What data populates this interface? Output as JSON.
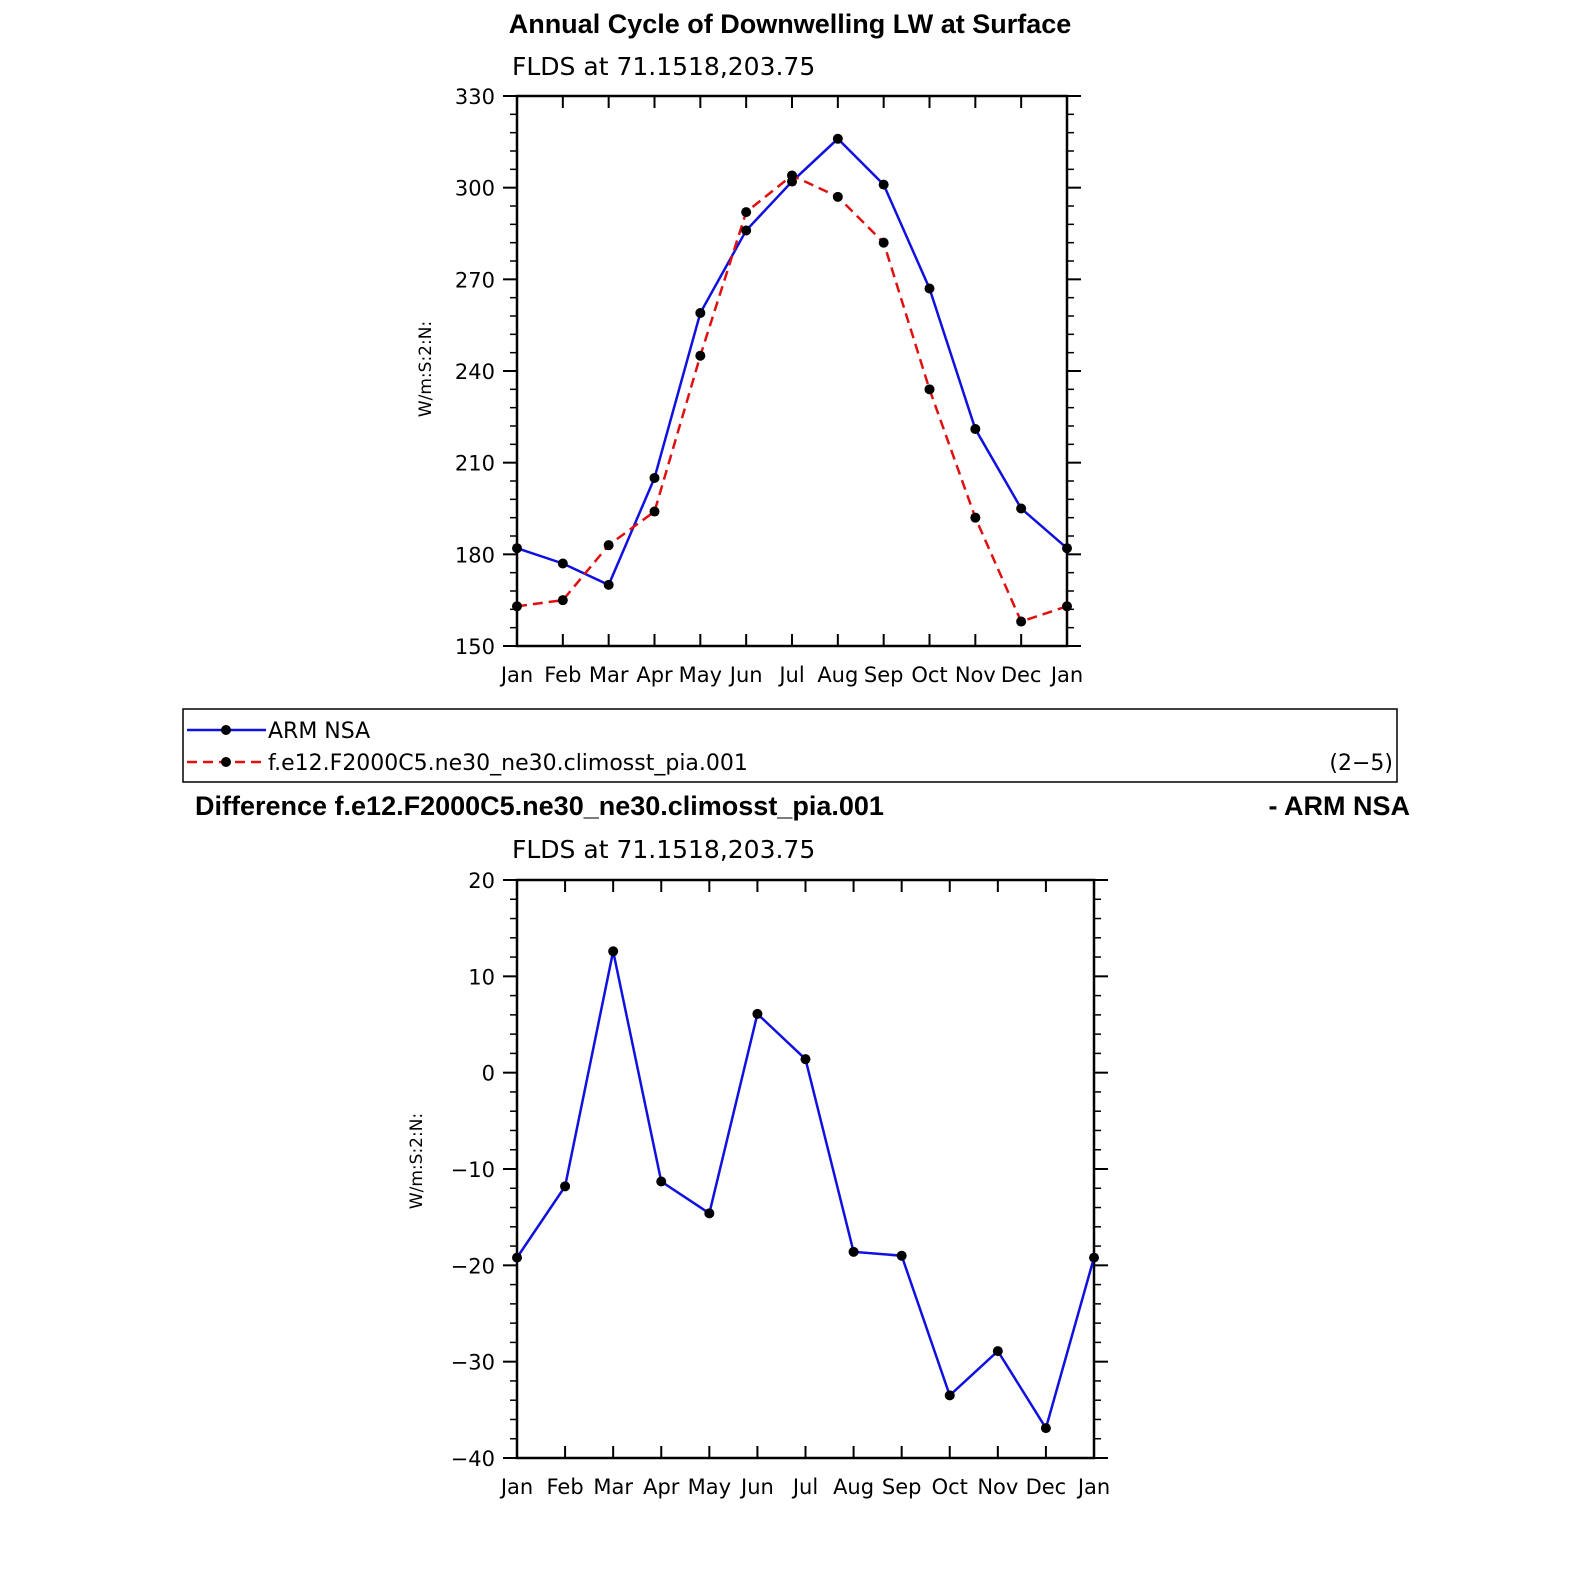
{
  "top_chart": {
    "title": "Annual Cycle of Downwelling LW at Surface",
    "subtitle": "FLDS at 71.1518,203.75",
    "ylabel": "W/m:S:2:N:"
  },
  "legend": {
    "items": [
      {
        "label": "ARM NSA",
        "color": "#1010e0",
        "dash": "solid"
      },
      {
        "label": "f.e12.F2000C5.ne30_ne30.climosst_pia.001",
        "color": "#e01010",
        "dash": "dashed"
      }
    ],
    "tag": "(2−5)"
  },
  "bottom_chart": {
    "title_left": "Difference f.e12.F2000C5.ne30_ne30.climosst_pia.001",
    "title_right": "- ARM NSA",
    "subtitle": "FLDS at 71.1518,203.75",
    "ylabel": "W/m:S:2:N:"
  },
  "chart_data": [
    {
      "type": "line",
      "categories": [
        "Jan",
        "Feb",
        "Mar",
        "Apr",
        "May",
        "Jun",
        "Jul",
        "Aug",
        "Sep",
        "Oct",
        "Nov",
        "Dec",
        "Jan"
      ],
      "ylim": [
        150,
        330
      ],
      "yticks": [
        150,
        180,
        210,
        240,
        270,
        300,
        330
      ],
      "grid": false,
      "legend_position": "bottom",
      "series": [
        {
          "name": "ARM NSA",
          "color": "#1010e0",
          "dash": "solid",
          "values": [
            182,
            177,
            170,
            205,
            259,
            286,
            302,
            316,
            301,
            267,
            221,
            195,
            182
          ]
        },
        {
          "name": "f.e12.F2000C5.ne30_ne30.climosst_pia.001",
          "color": "#e01010",
          "dash": "dashed",
          "values": [
            163,
            165,
            183,
            194,
            245,
            292,
            304,
            297,
            282,
            234,
            192,
            158,
            163
          ]
        }
      ]
    },
    {
      "type": "line",
      "categories": [
        "Jan",
        "Feb",
        "Mar",
        "Apr",
        "May",
        "Jun",
        "Jul",
        "Aug",
        "Sep",
        "Oct",
        "Nov",
        "Dec",
        "Jan"
      ],
      "ylim": [
        -40,
        20
      ],
      "yticks": [
        -40,
        -30,
        -20,
        -10,
        0,
        10,
        20
      ],
      "ytick_labels": [
        "−40",
        "−30",
        "−20",
        "−10",
        "0",
        "10",
        "20"
      ],
      "grid": false,
      "series": [
        {
          "color": "#1010e0",
          "dash": "solid",
          "values": [
            -19.2,
            -11.8,
            12.6,
            -11.3,
            -14.6,
            6.1,
            1.4,
            -18.6,
            -19.0,
            -33.5,
            -28.9,
            -36.9,
            -19.2
          ]
        }
      ]
    }
  ]
}
